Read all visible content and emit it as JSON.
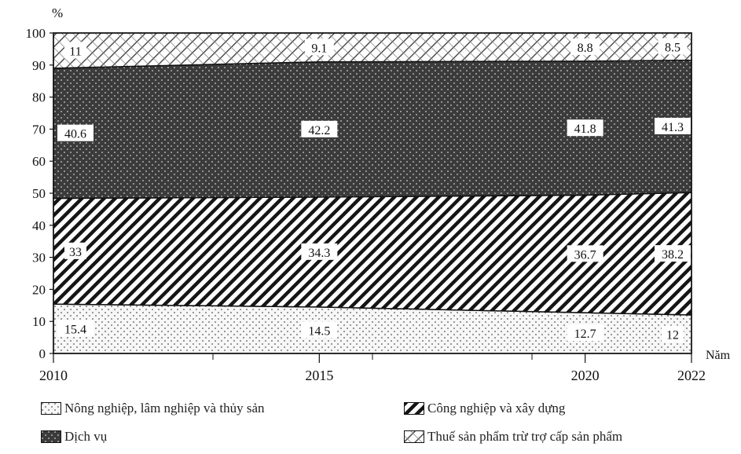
{
  "chart_data": {
    "type": "area",
    "stacked": true,
    "percent": true,
    "x": [
      2010,
      2015,
      2020,
      2022
    ],
    "series": [
      {
        "name": "Nông nghiệp, lâm nghiệp và thủy sản",
        "values": [
          15.4,
          14.5,
          12.7,
          12
        ],
        "labels": [
          "15.4",
          "14.5",
          "12.7",
          "12"
        ],
        "pattern": "dots-light",
        "color": "#f4f4f4"
      },
      {
        "name": "Công nghiệp và xây dựng",
        "values": [
          33,
          34.3,
          36.7,
          38.2
        ],
        "labels": [
          "33",
          "34.3",
          "36.7",
          "38.2"
        ],
        "pattern": "diagonal-hatch",
        "color": "#1a1a1a"
      },
      {
        "name": "Dịch vụ",
        "values": [
          40.6,
          42.2,
          41.8,
          41.3
        ],
        "labels": [
          "40.6",
          "42.2",
          "41.8",
          "41.3"
        ],
        "pattern": "dots-dark",
        "color": "#3a3a3a"
      },
      {
        "name": "Thuế sản phẩm trừ trợ cấp sản phẩm",
        "values": [
          11,
          9.1,
          8.8,
          8.5
        ],
        "labels": [
          "11",
          "9.1",
          "8.8",
          "8.5"
        ],
        "pattern": "crosshatch-light",
        "color": "#555555"
      }
    ],
    "ylim": [
      0,
      100
    ],
    "yticks": [
      0,
      10,
      20,
      30,
      40,
      50,
      60,
      70,
      80,
      90,
      100
    ],
    "xticks": [
      "2010",
      "2015",
      "2020",
      "2022"
    ],
    "ylabel": "%",
    "xlabel": "Năm",
    "legend_position": "bottom",
    "grid": false
  }
}
